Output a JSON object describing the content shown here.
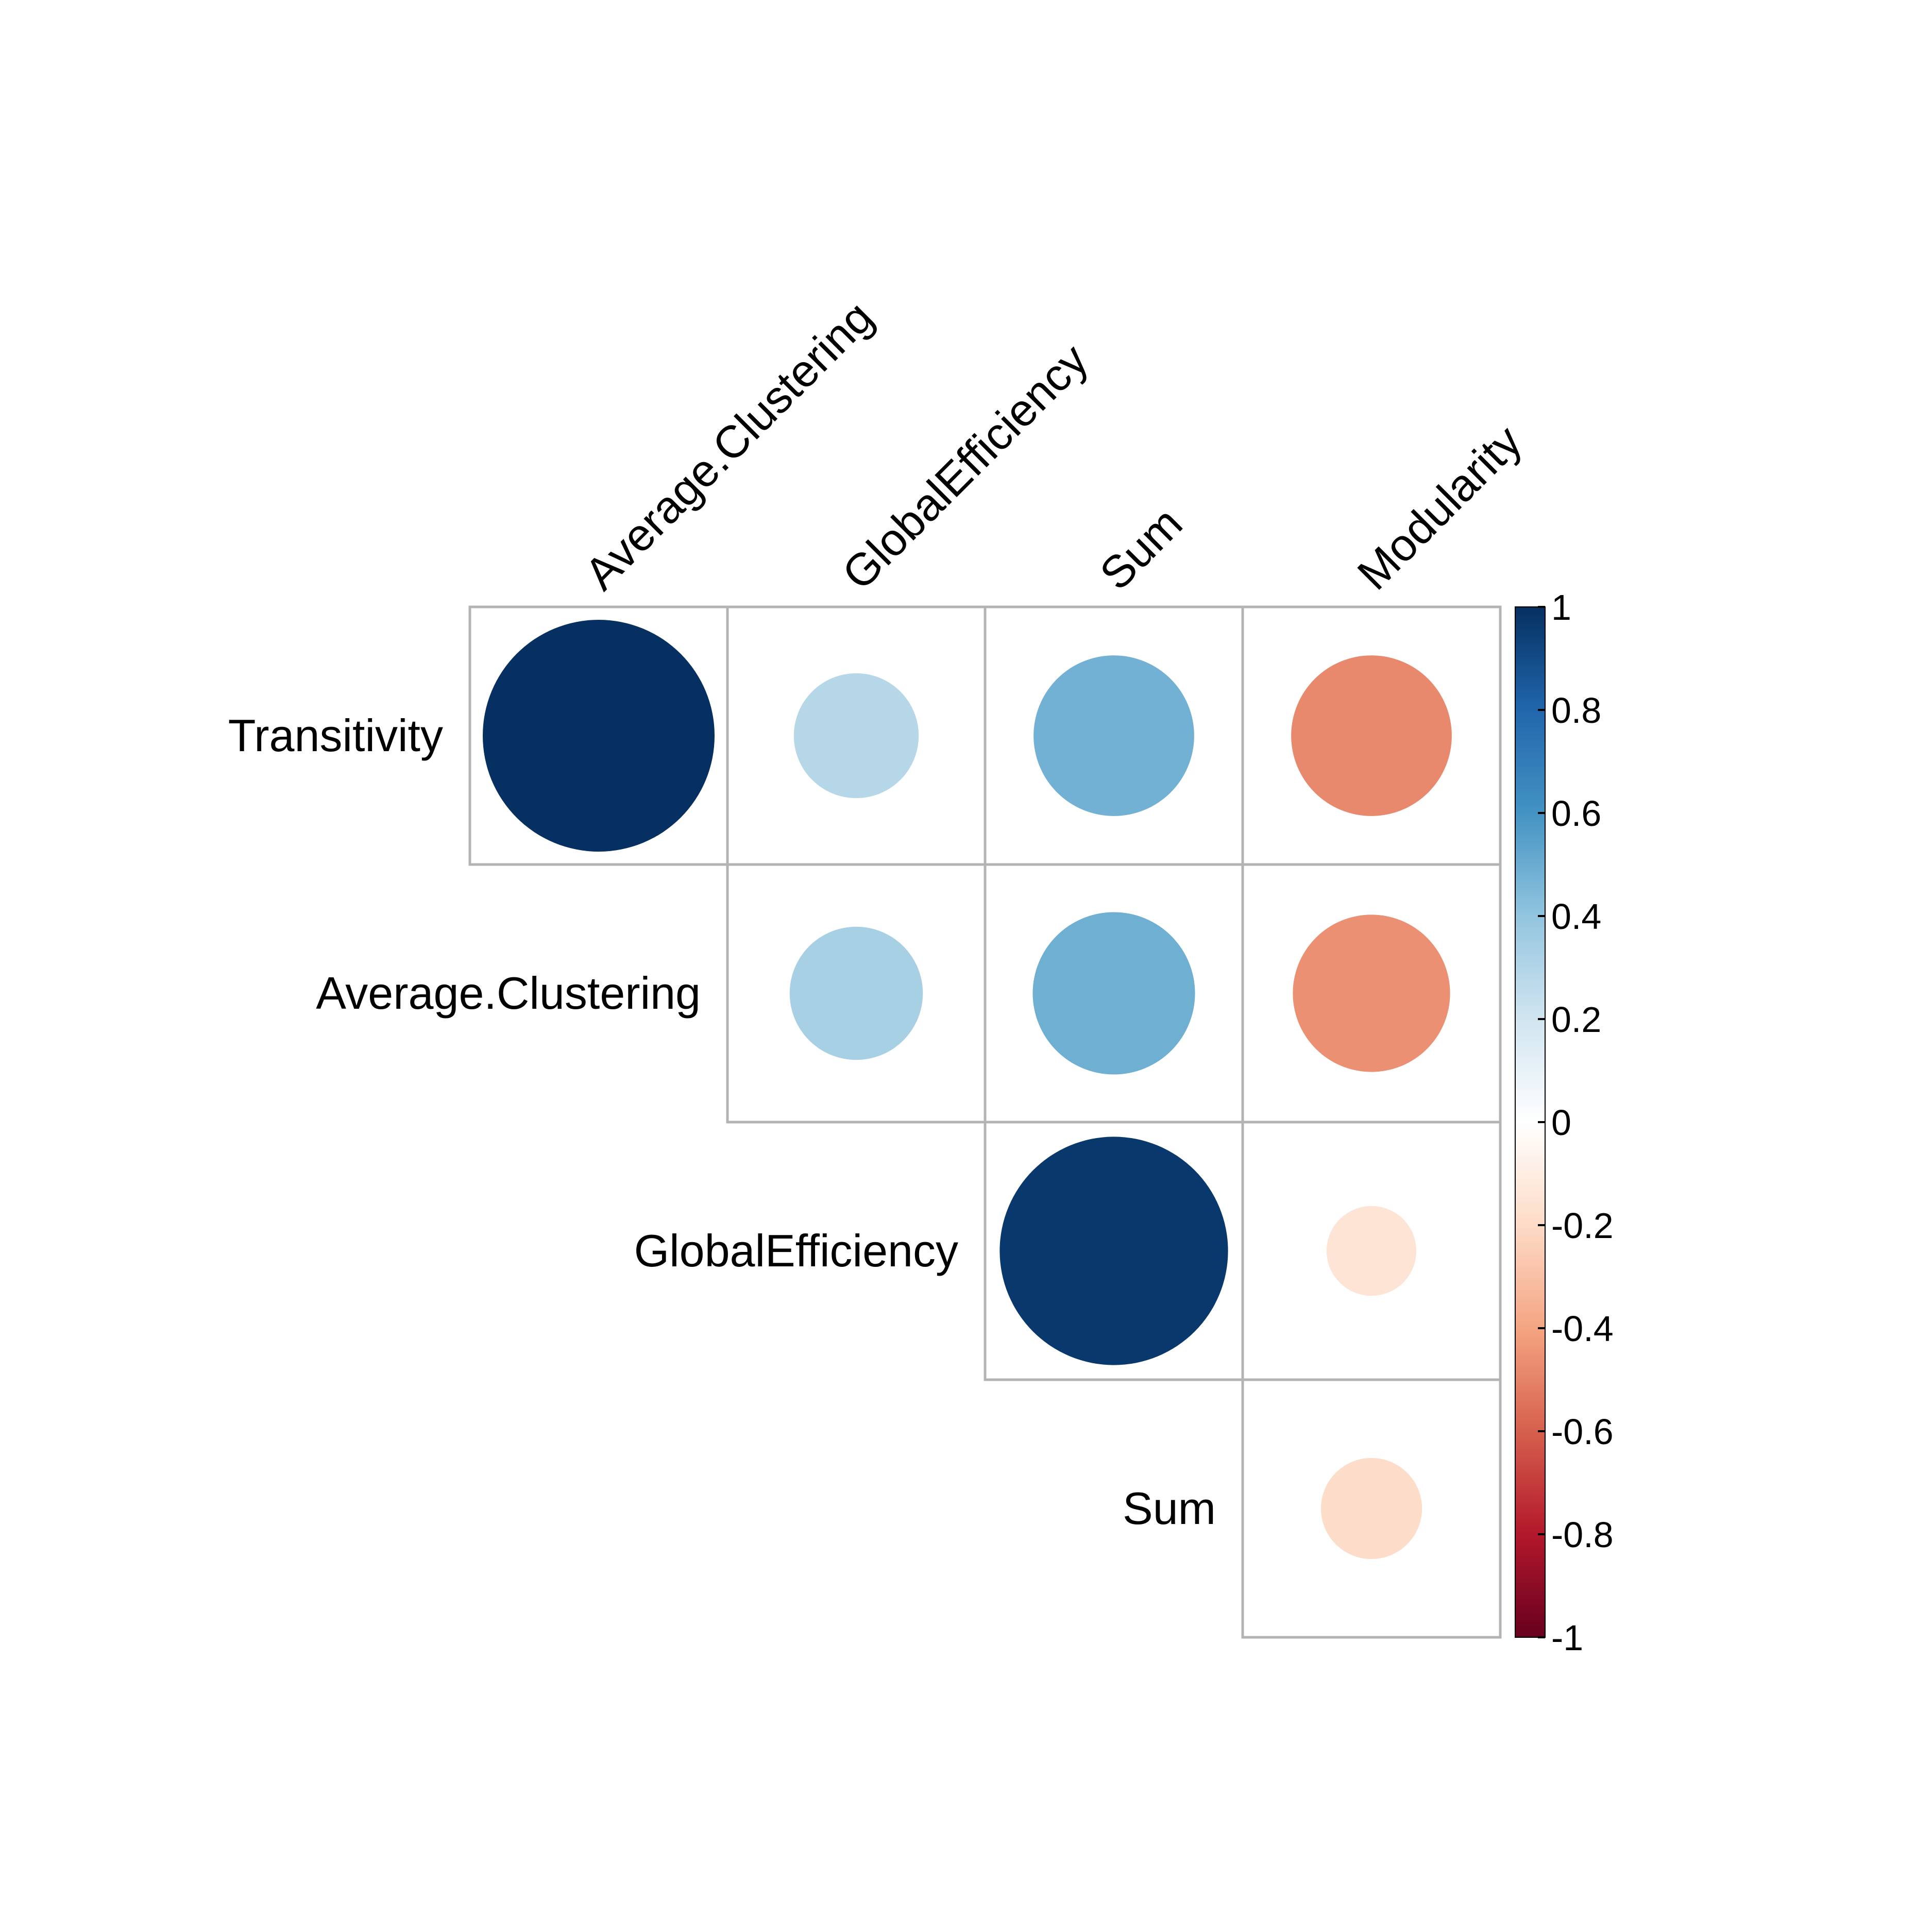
{
  "chart_data": {
    "type": "heatmap",
    "style": "correlation-circles-upper-triangle",
    "row_labels": [
      "Transitivity",
      "Average.Clustering",
      "GlobalEfficiency",
      "Sum"
    ],
    "col_labels": [
      "Average.Clustering",
      "GlobalEfficiency",
      "Sum",
      "Modularity"
    ],
    "cells": [
      {
        "row": 0,
        "col": 0,
        "value": 1.0
      },
      {
        "row": 0,
        "col": 1,
        "value": 0.29
      },
      {
        "row": 0,
        "col": 2,
        "value": 0.48
      },
      {
        "row": 0,
        "col": 3,
        "value": -0.48
      },
      {
        "row": 1,
        "col": 1,
        "value": 0.33
      },
      {
        "row": 1,
        "col": 2,
        "value": 0.49
      },
      {
        "row": 1,
        "col": 3,
        "value": -0.46
      },
      {
        "row": 2,
        "col": 2,
        "value": 0.97
      },
      {
        "row": 2,
        "col": 3,
        "value": -0.15
      },
      {
        "row": 3,
        "col": 3,
        "value": -0.19
      }
    ],
    "colorbar": {
      "range": [
        -1,
        1
      ],
      "ticks": [
        "1",
        "0.8",
        "0.6",
        "0.4",
        "0.2",
        "0",
        "-0.2",
        "-0.4",
        "-0.6",
        "-0.8",
        "-1"
      ],
      "stops": [
        {
          "value": -1.0,
          "color": "#67001f"
        },
        {
          "value": -0.8,
          "color": "#b2182b"
        },
        {
          "value": -0.6,
          "color": "#d6604d"
        },
        {
          "value": -0.4,
          "color": "#f4a582"
        },
        {
          "value": -0.2,
          "color": "#fddbc7"
        },
        {
          "value": 0.0,
          "color": "#ffffff"
        },
        {
          "value": 0.2,
          "color": "#d1e5f0"
        },
        {
          "value": 0.4,
          "color": "#92c5de"
        },
        {
          "value": 0.6,
          "color": "#4393c3"
        },
        {
          "value": 0.8,
          "color": "#2166ac"
        },
        {
          "value": 1.0,
          "color": "#053061"
        }
      ]
    },
    "grid_color": "#b3b3b3"
  }
}
